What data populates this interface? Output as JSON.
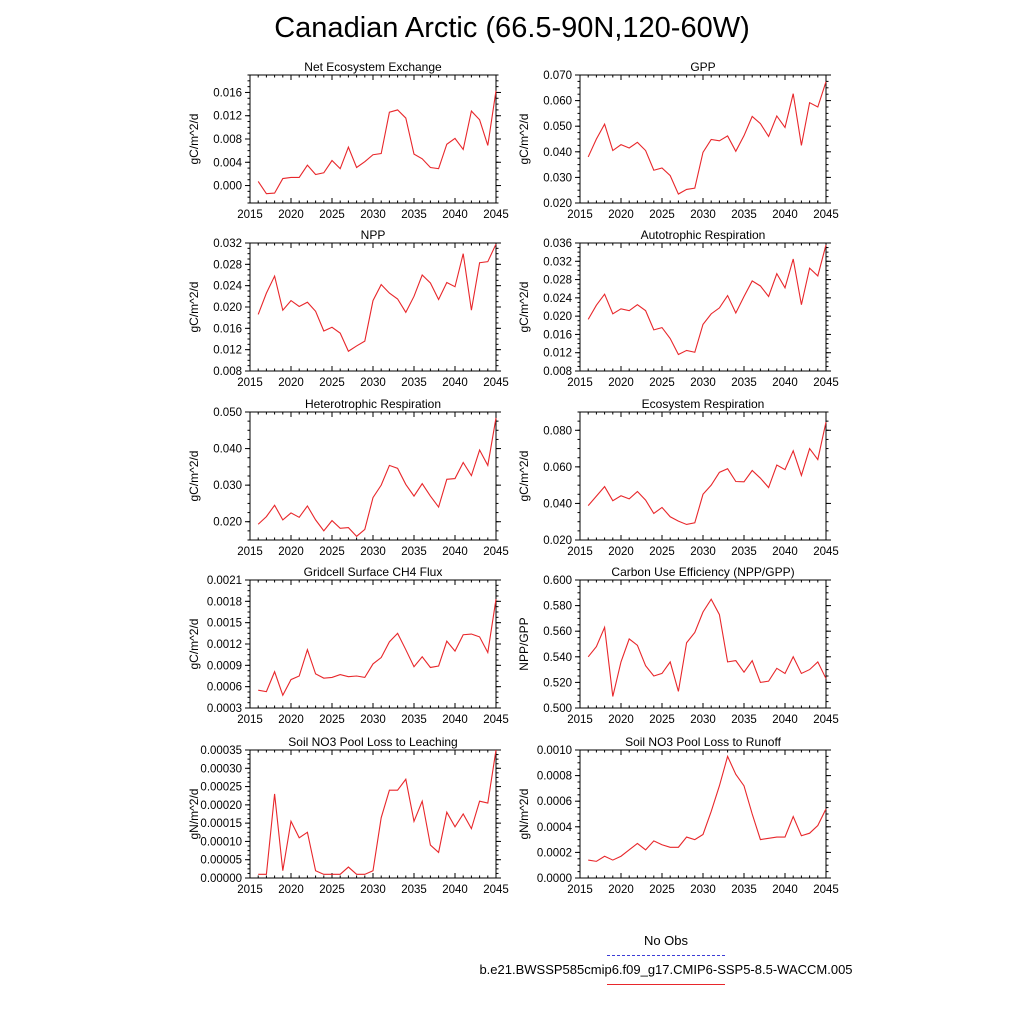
{
  "title": "Canadian Arctic (66.5-90N,120-60W)",
  "legend": {
    "obs_label": "No Obs",
    "model_label": "b.e21.BWSSP585cmip6.f09_g17.CMIP6-SSP5-8.5-WACCM.005",
    "obs_color": "#3c3cd6",
    "model_color": "#e8272b"
  },
  "chart_data": [
    {
      "type": "line",
      "title": "Net Ecosystem Exchange",
      "ylabel": "gC/m^2/d",
      "xlim": [
        2015,
        2045
      ],
      "xticks": [
        2015,
        2020,
        2025,
        2030,
        2035,
        2040,
        2045
      ],
      "ylim": [
        -0.003,
        0.019
      ],
      "yticks": [
        "0.000",
        "0.004",
        "0.008",
        "0.012",
        "0.016"
      ],
      "x": [
        2016,
        2017,
        2018,
        2019,
        2020,
        2021,
        2022,
        2023,
        2024,
        2025,
        2026,
        2027,
        2028,
        2029,
        2030,
        2031,
        2032,
        2033,
        2034,
        2035,
        2036,
        2037,
        2038,
        2039,
        2040,
        2041,
        2042,
        2043,
        2044,
        2045
      ],
      "values": [
        0.0007,
        -0.0014,
        -0.0013,
        0.0012,
        0.0014,
        0.0014,
        0.0035,
        0.0019,
        0.0022,
        0.0043,
        0.0029,
        0.0066,
        0.0031,
        0.0041,
        0.0053,
        0.0055,
        0.0126,
        0.013,
        0.0116,
        0.0054,
        0.0046,
        0.0031,
        0.0029,
        0.0071,
        0.0081,
        0.0062,
        0.0128,
        0.0113,
        0.0069,
        0.0163
      ]
    },
    {
      "type": "line",
      "title": "GPP",
      "ylabel": "gC/m^2/d",
      "xlim": [
        2015,
        2045
      ],
      "xticks": [
        2015,
        2020,
        2025,
        2030,
        2035,
        2040,
        2045
      ],
      "ylim": [
        0.02,
        0.07
      ],
      "yticks": [
        "0.020",
        "0.030",
        "0.040",
        "0.050",
        "0.060",
        "0.070"
      ],
      "x": [
        2016,
        2017,
        2018,
        2019,
        2020,
        2021,
        2022,
        2023,
        2024,
        2025,
        2026,
        2027,
        2028,
        2029,
        2030,
        2031,
        2032,
        2033,
        2034,
        2035,
        2036,
        2037,
        2038,
        2039,
        2040,
        2041,
        2042,
        2043,
        2044,
        2045
      ],
      "values": [
        0.038,
        0.045,
        0.0508,
        0.0405,
        0.0428,
        0.0415,
        0.0437,
        0.0405,
        0.0328,
        0.0337,
        0.0307,
        0.0235,
        0.0253,
        0.0258,
        0.0398,
        0.0448,
        0.0443,
        0.0462,
        0.0402,
        0.0463,
        0.0538,
        0.051,
        0.046,
        0.054,
        0.0495,
        0.0627,
        0.0425,
        0.0592,
        0.0575,
        0.0674
      ]
    },
    {
      "type": "line",
      "title": "NPP",
      "ylabel": "gC/m^2/d",
      "xlim": [
        2015,
        2045
      ],
      "xticks": [
        2015,
        2020,
        2025,
        2030,
        2035,
        2040,
        2045
      ],
      "ylim": [
        0.008,
        0.032
      ],
      "yticks": [
        "0.008",
        "0.012",
        "0.016",
        "0.020",
        "0.024",
        "0.028",
        "0.032"
      ],
      "x": [
        2016,
        2017,
        2018,
        2019,
        2020,
        2021,
        2022,
        2023,
        2024,
        2025,
        2026,
        2027,
        2028,
        2029,
        2030,
        2031,
        2032,
        2033,
        2034,
        2035,
        2036,
        2037,
        2038,
        2039,
        2040,
        2041,
        2042,
        2043,
        2044,
        2045
      ],
      "values": [
        0.0186,
        0.0226,
        0.0258,
        0.0194,
        0.0212,
        0.0201,
        0.0209,
        0.0192,
        0.0155,
        0.0162,
        0.0151,
        0.0117,
        0.0127,
        0.0136,
        0.0212,
        0.0242,
        0.0226,
        0.0215,
        0.019,
        0.022,
        0.026,
        0.0245,
        0.0214,
        0.0246,
        0.0238,
        0.03,
        0.0194,
        0.0283,
        0.0285,
        0.0318
      ]
    },
    {
      "type": "line",
      "title": "Autotrophic Respiration",
      "ylabel": "gC/m^2/d",
      "xlim": [
        2015,
        2045
      ],
      "xticks": [
        2015,
        2020,
        2025,
        2030,
        2035,
        2040,
        2045
      ],
      "ylim": [
        0.008,
        0.036
      ],
      "yticks": [
        "0.008",
        "0.012",
        "0.016",
        "0.020",
        "0.024",
        "0.028",
        "0.032",
        "0.036"
      ],
      "x": [
        2016,
        2017,
        2018,
        2019,
        2020,
        2021,
        2022,
        2023,
        2024,
        2025,
        2026,
        2027,
        2028,
        2029,
        2030,
        2031,
        2032,
        2033,
        2034,
        2035,
        2036,
        2037,
        2038,
        2039,
        2040,
        2041,
        2042,
        2043,
        2044,
        2045
      ],
      "values": [
        0.0193,
        0.0224,
        0.0248,
        0.0205,
        0.0216,
        0.0212,
        0.0225,
        0.0212,
        0.017,
        0.0175,
        0.0151,
        0.0116,
        0.0125,
        0.0121,
        0.0182,
        0.0205,
        0.0218,
        0.0245,
        0.0207,
        0.0243,
        0.0277,
        0.0266,
        0.0243,
        0.0293,
        0.0262,
        0.0325,
        0.0225,
        0.0305,
        0.0288,
        0.0356
      ]
    },
    {
      "type": "line",
      "title": "Heterotrophic Respiration",
      "ylabel": "gC/m^2/d",
      "xlim": [
        2015,
        2045
      ],
      "xticks": [
        2015,
        2020,
        2025,
        2030,
        2035,
        2040,
        2045
      ],
      "ylim": [
        0.015,
        0.05
      ],
      "yticks": [
        "0.020",
        "0.030",
        "0.040",
        "0.050"
      ],
      "x": [
        2016,
        2017,
        2018,
        2019,
        2020,
        2021,
        2022,
        2023,
        2024,
        2025,
        2026,
        2027,
        2028,
        2029,
        2030,
        2031,
        2032,
        2033,
        2034,
        2035,
        2036,
        2037,
        2038,
        2039,
        2040,
        2041,
        2042,
        2043,
        2044,
        2045
      ],
      "values": [
        0.0193,
        0.0214,
        0.0245,
        0.0205,
        0.0224,
        0.0212,
        0.0243,
        0.0205,
        0.0175,
        0.0203,
        0.0182,
        0.0184,
        0.016,
        0.0179,
        0.0266,
        0.03,
        0.0354,
        0.0346,
        0.0302,
        0.027,
        0.0304,
        0.027,
        0.024,
        0.0316,
        0.0318,
        0.0362,
        0.0326,
        0.0396,
        0.0354,
        0.0484
      ]
    },
    {
      "type": "line",
      "title": "Ecosystem Respiration",
      "ylabel": "gC/m^2/d",
      "xlim": [
        2015,
        2045
      ],
      "xticks": [
        2015,
        2020,
        2025,
        2030,
        2035,
        2040,
        2045
      ],
      "ylim": [
        0.02,
        0.09
      ],
      "yticks": [
        "0.020",
        "0.040",
        "0.060",
        "0.080"
      ],
      "x": [
        2016,
        2017,
        2018,
        2019,
        2020,
        2021,
        2022,
        2023,
        2024,
        2025,
        2026,
        2027,
        2028,
        2029,
        2030,
        2031,
        2032,
        2033,
        2034,
        2035,
        2036,
        2037,
        2038,
        2039,
        2040,
        2041,
        2042,
        2043,
        2044,
        2045
      ],
      "values": [
        0.0388,
        0.044,
        0.0492,
        0.0415,
        0.0442,
        0.0425,
        0.0465,
        0.0418,
        0.0345,
        0.0378,
        0.0327,
        0.0303,
        0.0285,
        0.0294,
        0.045,
        0.05,
        0.057,
        0.059,
        0.052,
        0.0518,
        0.058,
        0.0538,
        0.0487,
        0.061,
        0.0585,
        0.0688,
        0.0553,
        0.07,
        0.064,
        0.0845
      ]
    },
    {
      "type": "line",
      "title": "Gridcell Surface CH4 Flux",
      "ylabel": "gC/m^2/d",
      "xlim": [
        2015,
        2045
      ],
      "xticks": [
        2015,
        2020,
        2025,
        2030,
        2035,
        2040,
        2045
      ],
      "ylim": [
        0.0003,
        0.0021
      ],
      "yticks": [
        "0.0003",
        "0.0006",
        "0.0009",
        "0.0012",
        "0.0015",
        "0.0018",
        "0.0021"
      ],
      "x": [
        2016,
        2017,
        2018,
        2019,
        2020,
        2021,
        2022,
        2023,
        2024,
        2025,
        2026,
        2027,
        2028,
        2029,
        2030,
        2031,
        2032,
        2033,
        2034,
        2035,
        2036,
        2037,
        2038,
        2039,
        2040,
        2041,
        2042,
        2043,
        2044,
        2045
      ],
      "values": [
        0.00055,
        0.00053,
        0.00081,
        0.00048,
        0.0007,
        0.00075,
        0.00112,
        0.00078,
        0.00072,
        0.00073,
        0.00077,
        0.00074,
        0.00075,
        0.00073,
        0.00092,
        0.00101,
        0.00123,
        0.00135,
        0.00112,
        0.00088,
        0.00102,
        0.00087,
        0.00089,
        0.00124,
        0.0011,
        0.00133,
        0.00134,
        0.0013,
        0.00108,
        0.00183
      ]
    },
    {
      "type": "line",
      "title": "Carbon Use Efficiency (NPP/GPP)",
      "ylabel": "NPP/GPP",
      "xlim": [
        2015,
        2045
      ],
      "xticks": [
        2015,
        2020,
        2025,
        2030,
        2035,
        2040,
        2045
      ],
      "ylim": [
        0.5,
        0.6
      ],
      "yticks": [
        "0.500",
        "0.520",
        "0.540",
        "0.560",
        "0.580",
        "0.600"
      ],
      "x": [
        2016,
        2017,
        2018,
        2019,
        2020,
        2021,
        2022,
        2023,
        2024,
        2025,
        2026,
        2027,
        2028,
        2029,
        2030,
        2031,
        2032,
        2033,
        2034,
        2035,
        2036,
        2037,
        2038,
        2039,
        2040,
        2041,
        2042,
        2043,
        2044,
        2045
      ],
      "values": [
        0.54,
        0.548,
        0.563,
        0.509,
        0.536,
        0.554,
        0.549,
        0.533,
        0.525,
        0.527,
        0.536,
        0.513,
        0.551,
        0.559,
        0.575,
        0.585,
        0.573,
        0.536,
        0.537,
        0.528,
        0.537,
        0.52,
        0.521,
        0.531,
        0.527,
        0.54,
        0.527,
        0.53,
        0.536,
        0.523
      ]
    },
    {
      "type": "line",
      "title": "Soil NO3 Pool Loss to Leaching",
      "ylabel": "gN/m^2/d",
      "xlim": [
        2015,
        2045
      ],
      "xticks": [
        2015,
        2020,
        2025,
        2030,
        2035,
        2040,
        2045
      ],
      "ylim": [
        0,
        0.00035
      ],
      "yticks": [
        "0.00000",
        "0.00005",
        "0.00010",
        "0.00015",
        "0.00020",
        "0.00025",
        "0.00030",
        "0.00035"
      ],
      "x": [
        2016,
        2017,
        2018,
        2019,
        2020,
        2021,
        2022,
        2023,
        2024,
        2025,
        2026,
        2027,
        2028,
        2029,
        2030,
        2031,
        2032,
        2033,
        2034,
        2035,
        2036,
        2037,
        2038,
        2039,
        2040,
        2041,
        2042,
        2043,
        2044,
        2045
      ],
      "values": [
        1e-05,
        1e-05,
        0.00023,
        2e-05,
        0.000155,
        0.00011,
        0.000125,
        2e-05,
        1e-05,
        1e-05,
        1e-05,
        3e-05,
        1e-05,
        1e-05,
        2e-05,
        0.000165,
        0.00024,
        0.00024,
        0.00027,
        0.000155,
        0.00021,
        9e-05,
        7e-05,
        0.00018,
        0.00014,
        0.000175,
        0.000135,
        0.00021,
        0.000205,
        0.00035
      ]
    },
    {
      "type": "line",
      "title": "Soil NO3 Pool Loss to Runoff",
      "ylabel": "gN/m^2/d",
      "xlim": [
        2015,
        2045
      ],
      "xticks": [
        2015,
        2020,
        2025,
        2030,
        2035,
        2040,
        2045
      ],
      "ylim": [
        0,
        0.001
      ],
      "yticks": [
        "0.0000",
        "0.0002",
        "0.0004",
        "0.0006",
        "0.0008",
        "0.0010"
      ],
      "x": [
        2016,
        2017,
        2018,
        2019,
        2020,
        2021,
        2022,
        2023,
        2024,
        2025,
        2026,
        2027,
        2028,
        2029,
        2030,
        2031,
        2032,
        2033,
        2034,
        2035,
        2036,
        2037,
        2038,
        2039,
        2040,
        2041,
        2042,
        2043,
        2044,
        2045
      ],
      "values": [
        0.00014,
        0.00013,
        0.00017,
        0.00014,
        0.00017,
        0.00022,
        0.00027,
        0.00022,
        0.00029,
        0.00026,
        0.00024,
        0.00024,
        0.00032,
        0.0003,
        0.00034,
        0.00052,
        0.00072,
        0.00095,
        0.00081,
        0.00072,
        0.0005,
        0.0003,
        0.00031,
        0.00032,
        0.00032,
        0.00048,
        0.00033,
        0.00035,
        0.00041,
        0.00054
      ]
    }
  ]
}
